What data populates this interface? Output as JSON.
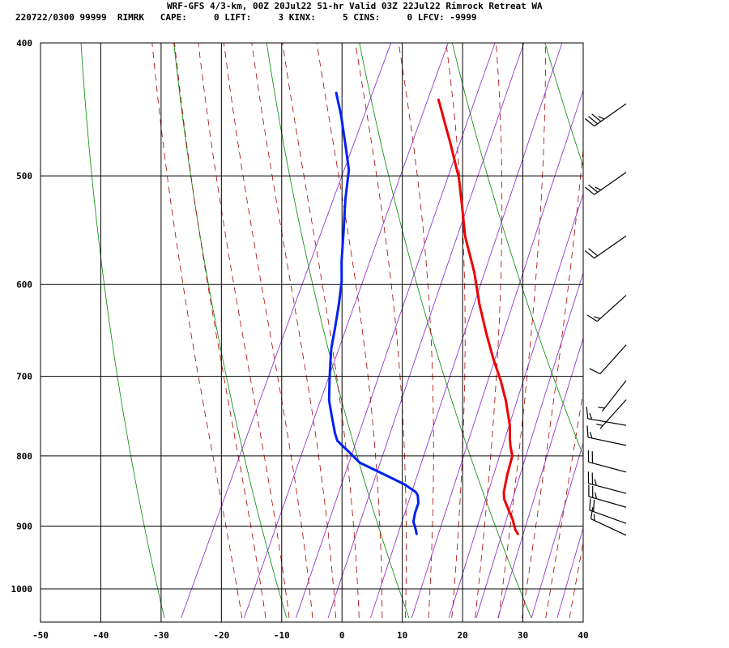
{
  "header": {
    "title": "WRF-GFS 4/3-km, 00Z 20Jul22 51-hr Valid 03Z 22Jul22 Rimrock Retreat WA",
    "stats": "220722/0300 99999  RIMRK   CAPE:     0 LIFT:     3 KINX:     5 CINS:     0 LFCV: -9999"
  },
  "chart_data": {
    "type": "skew-t",
    "title": "WRF-GFS 4/3-km, 00Z 20Jul22 51-hr Valid 03Z 22Jul22 Rimrock Retreat WA",
    "x_ticks": [
      -50,
      -40,
      -30,
      -20,
      -10,
      0,
      10,
      20,
      30,
      40
    ],
    "y_ticks": [
      400,
      500,
      600,
      700,
      800,
      900,
      1000
    ],
    "xlim": [
      -50,
      40
    ],
    "ylim_hpa": [
      1050,
      400
    ],
    "y_scale": "log",
    "grid": true,
    "series": [
      {
        "role": "temperature",
        "color": "#ee0000",
        "points": [
          [
            22.3,
            912
          ],
          [
            21.5,
            905
          ],
          [
            20.3,
            890
          ],
          [
            19.0,
            877
          ],
          [
            17.3,
            860
          ],
          [
            16.7,
            850
          ],
          [
            15.9,
            825
          ],
          [
            15.3,
            800
          ],
          [
            14.3,
            788
          ],
          [
            13.6,
            778
          ],
          [
            12.5,
            760
          ],
          [
            10.0,
            730
          ],
          [
            7.5,
            705
          ],
          [
            4.6,
            680
          ],
          [
            1.4,
            651
          ],
          [
            -2.0,
            620
          ],
          [
            -5.3,
            588
          ],
          [
            -9.7,
            553
          ],
          [
            -12.4,
            527
          ],
          [
            -15.2,
            502
          ],
          [
            -19.1,
            475
          ],
          [
            -24.7,
            440
          ]
        ]
      },
      {
        "role": "dewpoint",
        "color": "#0022ee",
        "points": [
          [
            5.5,
            912
          ],
          [
            5.0,
            905
          ],
          [
            4.0,
            893
          ],
          [
            3.6,
            880
          ],
          [
            3.4,
            866
          ],
          [
            2.7,
            855
          ],
          [
            2.1,
            850
          ],
          [
            -0.4,
            839
          ],
          [
            -4.6,
            825
          ],
          [
            -9.5,
            809
          ],
          [
            -12.6,
            792
          ],
          [
            -14.9,
            780
          ],
          [
            -15.9,
            770
          ],
          [
            -17.6,
            750
          ],
          [
            -19.4,
            729
          ],
          [
            -20.9,
            705
          ],
          [
            -22.1,
            685
          ],
          [
            -23.1,
            668
          ],
          [
            -24.1,
            645
          ],
          [
            -25.3,
            620
          ],
          [
            -26.6,
            597
          ],
          [
            -28.2,
            577
          ],
          [
            -30.1,
            550
          ],
          [
            -32.4,
            520
          ],
          [
            -34.1,
            495
          ],
          [
            -36.2,
            478
          ],
          [
            -39.6,
            452
          ],
          [
            -42.2,
            435
          ]
        ]
      }
    ],
    "wind_barbs": [
      {
        "p": 443,
        "dir": 235,
        "speed": 35
      },
      {
        "p": 497,
        "dir": 235,
        "speed": 25
      },
      {
        "p": 553,
        "dir": 235,
        "speed": 20
      },
      {
        "p": 611,
        "dir": 228,
        "speed": 15
      },
      {
        "p": 664,
        "dir": 222,
        "speed": 10
      },
      {
        "p": 705,
        "dir": 218,
        "speed": 5
      },
      {
        "p": 728,
        "dir": 222,
        "speed": 5
      },
      {
        "p": 760,
        "dir": 280,
        "speed": 15
      },
      {
        "p": 786,
        "dir": 282,
        "speed": 15
      },
      {
        "p": 822,
        "dir": 285,
        "speed": 20
      },
      {
        "p": 852,
        "dir": 285,
        "speed": 25
      },
      {
        "p": 872,
        "dir": 286,
        "speed": 25
      },
      {
        "p": 896,
        "dir": 290,
        "speed": 20
      },
      {
        "p": 914,
        "dir": 295,
        "speed": 15
      }
    ]
  }
}
